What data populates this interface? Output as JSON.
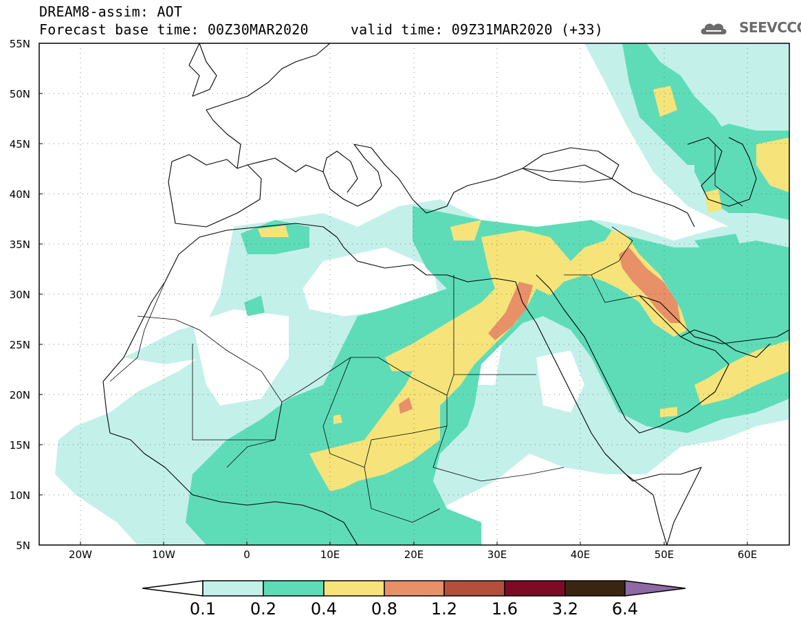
{
  "header": {
    "line1": "DREAM8-assim: AOT",
    "line2": "Forecast base time: 00Z30MAR2020     valid time: 09Z31MAR2020 (+33)",
    "logo_text": "SEEVCCC"
  },
  "map": {
    "lat_labels": [
      "55N",
      "50N",
      "45N",
      "40N",
      "35N",
      "30N",
      "25N",
      "20N",
      "15N",
      "10N",
      "5N"
    ],
    "lon_labels": [
      "20W",
      "10W",
      "0",
      "10E",
      "20E",
      "30E",
      "40E",
      "50E",
      "60E"
    ],
    "lat_range": [
      5,
      55
    ],
    "lon_range": [
      -25,
      65
    ],
    "gridlines": "dotted"
  },
  "colorbar": {
    "labels": [
      "0.1",
      "0.2",
      "0.4",
      "0.8",
      "1.2",
      "1.6",
      "3.2",
      "6.4"
    ],
    "colors": [
      "#ffffff",
      "#c4f0ea",
      "#5edcb8",
      "#f6e47a",
      "#e89068",
      "#b44f3c",
      "#7d0b23",
      "#3a2513",
      "#8d6aa3"
    ]
  }
}
